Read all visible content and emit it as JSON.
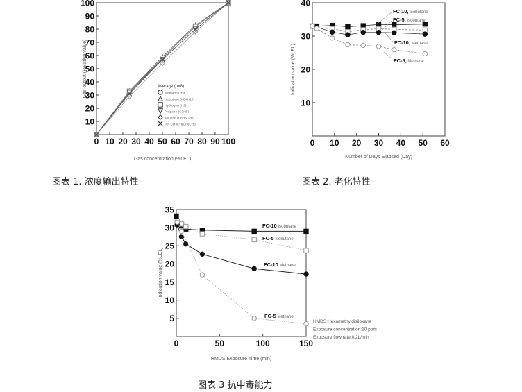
{
  "captions": [
    "图表 1. 浓度输出特性",
    "图表 2. 老化特性",
    "图表 3 抗中毒能力"
  ],
  "chart_data": [
    {
      "type": "line",
      "xlabel": "Gas concentration (%LEL)",
      "ylabel": "Gas output (Relative value)",
      "xlim": [
        0,
        100
      ],
      "ylim": [
        0,
        100
      ],
      "xticks": [
        0,
        10,
        20,
        30,
        40,
        50,
        60,
        70,
        80,
        90,
        100
      ],
      "yticks": [
        10,
        20,
        30,
        40,
        50,
        60,
        70,
        80,
        90,
        100
      ],
      "legend_title": "Average (n=8)",
      "legend_position": "lower-right",
      "series": [
        {
          "name": "Methane CH4",
          "marker": "circle-open",
          "x": [
            0,
            25,
            50,
            75,
            100
          ],
          "y": [
            0,
            32,
            58,
            82,
            100
          ]
        },
        {
          "name": "Isobutane (i-C4H10)",
          "marker": "triangle-open",
          "x": [
            0,
            25,
            50,
            75,
            100
          ],
          "y": [
            0,
            33,
            59,
            83,
            100
          ]
        },
        {
          "name": "Hydrogen (H2)",
          "marker": "square-open",
          "x": [
            0,
            25,
            50,
            75,
            100
          ],
          "y": [
            0,
            33,
            58,
            82,
            100
          ]
        },
        {
          "name": "Propane (C3H8)",
          "marker": "triangle-down-open",
          "x": [
            0,
            25,
            50,
            75,
            100
          ],
          "y": [
            0,
            32,
            57,
            80,
            100
          ]
        },
        {
          "name": "Toluene (C6H5CH3)",
          "marker": "diamond-open",
          "x": [
            0,
            25,
            50,
            75,
            100
          ],
          "y": [
            0,
            29,
            54,
            78,
            100
          ]
        },
        {
          "name": "IPA CH3CH(OH)CH3",
          "marker": "x",
          "x": [
            0,
            25,
            50,
            75,
            100
          ],
          "y": [
            0,
            31,
            57,
            80,
            100
          ]
        }
      ]
    },
    {
      "type": "line",
      "xlabel": "Number of Days Elapsed (Day)",
      "ylabel": "Indication value (%LEL)",
      "xlim": [
        0,
        60
      ],
      "ylim": [
        0,
        40
      ],
      "xticks": [
        0,
        10,
        20,
        30,
        40,
        50,
        60
      ],
      "yticks": [
        10,
        20,
        30,
        40
      ],
      "series": [
        {
          "name": "FC 10,",
          "gas": "Isobutane",
          "marker": "square-filled",
          "line": "solid",
          "x": [
            0,
            2,
            9,
            16,
            23,
            30,
            37,
            51
          ],
          "y": [
            33,
            33,
            33.2,
            32.8,
            33.1,
            33.5,
            33.4,
            33.6
          ]
        },
        {
          "name": "FC-5,",
          "gas": "Isobutane",
          "marker": "square-open",
          "line": "dashed",
          "x": [
            0,
            2,
            9,
            16,
            23,
            30,
            37,
            51
          ],
          "y": [
            33,
            32.5,
            32.2,
            31.3,
            31.9,
            32.2,
            32,
            31.8
          ]
        },
        {
          "name": "FC-10,",
          "gas": "Methane",
          "marker": "circle-filled",
          "line": "solid",
          "x": [
            0,
            2,
            9,
            16,
            23,
            30,
            37,
            51
          ],
          "y": [
            33,
            32.7,
            31.2,
            30.4,
            31.1,
            31.1,
            31,
            30.6
          ]
        },
        {
          "name": "FC-5,",
          "gas": "Methane",
          "marker": "circle-open",
          "line": "dashed",
          "x": [
            0,
            2,
            9,
            16,
            23,
            30,
            37,
            51
          ],
          "y": [
            33,
            32.3,
            29.4,
            27.4,
            27.2,
            26.9,
            25.9,
            24.7
          ]
        }
      ]
    },
    {
      "type": "line",
      "xlabel": "HMDS Exposure Time (min)",
      "ylabel": "Indication value (%LEL)",
      "xlim": [
        0,
        150
      ],
      "ylim": [
        0,
        35
      ],
      "xticks": [
        0,
        50,
        100,
        150
      ],
      "yticks": [
        5,
        10,
        15,
        20,
        25,
        30,
        35
      ],
      "annotations": [
        "HMDS:Hexamethyldisiloxane",
        "Exposure concentration:10 ppm",
        "Exposure flow rate:0.2L/min"
      ],
      "series": [
        {
          "name": "FC-10",
          "gas": "Isobutane",
          "marker": "square-filled",
          "line": "solid",
          "x": [
            0,
            1,
            6,
            11,
            30,
            90,
            150
          ],
          "y": [
            33.2,
            31,
            30.5,
            29.6,
            29.3,
            29,
            29
          ]
        },
        {
          "name": "FC-5",
          "gas": "Isobutane",
          "marker": "square-open",
          "line": "dotted",
          "x": [
            1,
            6,
            11,
            30,
            90,
            150
          ],
          "y": [
            31.8,
            31,
            30.3,
            28.3,
            26.7,
            23.7
          ]
        },
        {
          "name": "FC-10",
          "gas": "Methane",
          "marker": "circle-filled",
          "line": "solid",
          "x": [
            1,
            6,
            11,
            30,
            90,
            150
          ],
          "y": [
            30.8,
            27.5,
            25.5,
            22.7,
            18.7,
            17.2
          ]
        },
        {
          "name": "FC-5",
          "gas": "Methane",
          "marker": "circle-open",
          "line": "dotted",
          "x": [
            1,
            6,
            30,
            90,
            150
          ],
          "y": [
            31.5,
            29,
            17,
            5,
            3.5
          ]
        }
      ]
    }
  ]
}
